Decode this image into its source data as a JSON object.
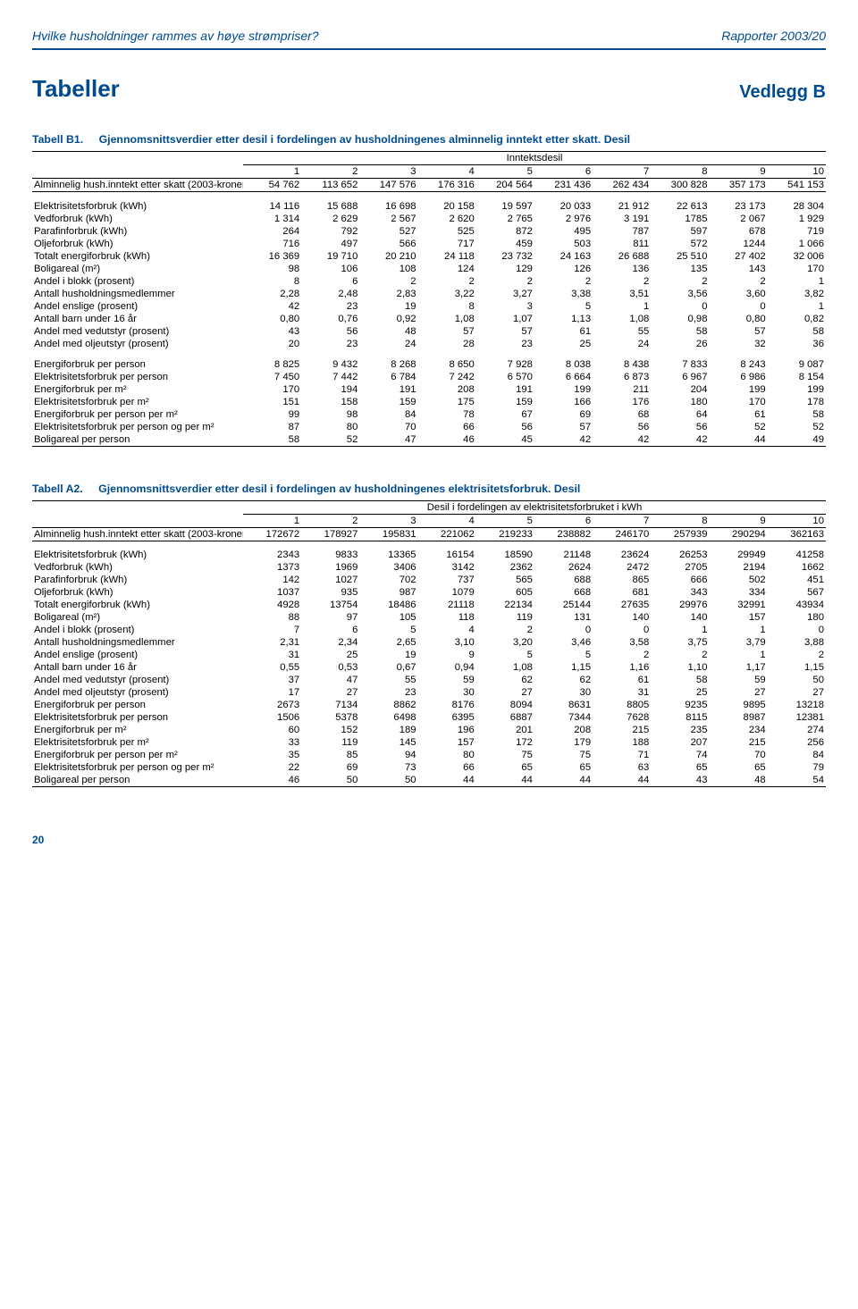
{
  "header": {
    "title": "Hvilke husholdninger rammes av høye strømpriser?",
    "report": "Rapporter 2003/20"
  },
  "appendix": {
    "tables_label": "Tabeller",
    "appendix_label": "Vedlegg B"
  },
  "tableB1": {
    "num": "Tabell B1.",
    "caption": "Gjennomsnittsverdier etter desil i fordelingen av husholdningenes alminnelig inntekt etter skatt. Desil",
    "span_header": "Inntektsdesil",
    "col_headers": [
      "1",
      "2",
      "3",
      "4",
      "5",
      "6",
      "7",
      "8",
      "9",
      "10"
    ],
    "income_row": {
      "label": "Alminnelig hush.inntekt etter skatt (2003-kroner)",
      "vals": [
        "54 762",
        "113 652",
        "147 576",
        "176 316",
        "204 564",
        "231 436",
        "262 434",
        "300 828",
        "357 173",
        "541 153"
      ]
    },
    "group1": [
      {
        "label": "Elektrisitetsforbruk (kWh)",
        "vals": [
          "14 116",
          "15 688",
          "16 698",
          "20 158",
          "19 597",
          "20 033",
          "21 912",
          "22 613",
          "23 173",
          "28 304"
        ]
      },
      {
        "label": "Vedforbruk (kWh)",
        "vals": [
          "1 314",
          "2 629",
          "2 567",
          "2 620",
          "2 765",
          "2 976",
          "3 191",
          "1785",
          "2 067",
          "1 929"
        ]
      },
      {
        "label": "Parafinforbruk (kWh)",
        "vals": [
          "264",
          "792",
          "527",
          "525",
          "872",
          "495",
          "787",
          "597",
          "678",
          "719"
        ]
      },
      {
        "label": "Oljeforbruk (kWh)",
        "vals": [
          "716",
          "497",
          "566",
          "717",
          "459",
          "503",
          "811",
          "572",
          "1244",
          "1 066"
        ]
      },
      {
        "label": "Totalt energiforbruk (kWh)",
        "vals": [
          "16 369",
          "19 710",
          "20 210",
          "24 118",
          "23 732",
          "24 163",
          "26 688",
          "25 510",
          "27 402",
          "32 006"
        ]
      },
      {
        "label": "Boligareal (m²)",
        "vals": [
          "98",
          "106",
          "108",
          "124",
          "129",
          "126",
          "136",
          "135",
          "143",
          "170"
        ]
      },
      {
        "label": "Andel i blokk (prosent)",
        "vals": [
          "8",
          "6",
          "2",
          "2",
          "2",
          "2",
          "2",
          "2",
          "2",
          "1"
        ]
      },
      {
        "label": "Antall husholdningsmedlemmer",
        "vals": [
          "2,28",
          "2,48",
          "2,83",
          "3,22",
          "3,27",
          "3,38",
          "3,51",
          "3,56",
          "3,60",
          "3,82"
        ]
      },
      {
        "label": "Andel enslige (prosent)",
        "vals": [
          "42",
          "23",
          "19",
          "8",
          "3",
          "5",
          "1",
          "0",
          "0",
          "1"
        ]
      },
      {
        "label": "Antall barn under 16 år",
        "vals": [
          "0,80",
          "0,76",
          "0,92",
          "1,08",
          "1,07",
          "1,13",
          "1,08",
          "0,98",
          "0,80",
          "0,82"
        ]
      },
      {
        "label": "Andel med vedutstyr (prosent)",
        "vals": [
          "43",
          "56",
          "48",
          "57",
          "57",
          "61",
          "55",
          "58",
          "57",
          "58"
        ]
      },
      {
        "label": "Andel med oljeutstyr (prosent)",
        "vals": [
          "20",
          "23",
          "24",
          "28",
          "23",
          "25",
          "24",
          "26",
          "32",
          "36"
        ]
      }
    ],
    "group2": [
      {
        "label": "Energiforbruk per person",
        "vals": [
          "8 825",
          "9 432",
          "8 268",
          "8 650",
          "7 928",
          "8 038",
          "8 438",
          "7 833",
          "8 243",
          "9 087"
        ]
      },
      {
        "label": "Elektrisitetsforbruk per person",
        "vals": [
          "7 450",
          "7 442",
          "6 784",
          "7 242",
          "6 570",
          "6 664",
          "6 873",
          "6 967",
          "6 986",
          "8 154"
        ]
      },
      {
        "label": "Energiforbruk per m²",
        "vals": [
          "170",
          "194",
          "191",
          "208",
          "191",
          "199",
          "211",
          "204",
          "199",
          "199"
        ]
      },
      {
        "label": "Elektrisitetsforbruk per m²",
        "vals": [
          "151",
          "158",
          "159",
          "175",
          "159",
          "166",
          "176",
          "180",
          "170",
          "178"
        ]
      },
      {
        "label": "Energiforbruk per person per m²",
        "vals": [
          "99",
          "98",
          "84",
          "78",
          "67",
          "69",
          "68",
          "64",
          "61",
          "58"
        ]
      },
      {
        "label": "Elektrisitetsforbruk per person og per m²",
        "vals": [
          "87",
          "80",
          "70",
          "66",
          "56",
          "57",
          "56",
          "56",
          "52",
          "52"
        ]
      },
      {
        "label": "Boligareal per person",
        "vals": [
          "58",
          "52",
          "47",
          "46",
          "45",
          "42",
          "42",
          "42",
          "44",
          "49"
        ]
      }
    ]
  },
  "tableA2": {
    "num": "Tabell A2.",
    "caption": "Gjennomsnittsverdier etter desil i fordelingen av husholdningenes elektrisitetsforbruk. Desil",
    "span_header": "Desil i fordelingen av elektrisitetsforbruket i kWh",
    "col_headers": [
      "1",
      "2",
      "3",
      "4",
      "5",
      "6",
      "7",
      "8",
      "9",
      "10"
    ],
    "income_row": {
      "label": "Alminnelig hush.inntekt etter skatt (2003-kroner)",
      "vals": [
        "172672",
        "178927",
        "195831",
        "221062",
        "219233",
        "238882",
        "246170",
        "257939",
        "290294",
        "362163"
      ]
    },
    "group1": [
      {
        "label": "Elektrisitetsforbruk (kWh)",
        "vals": [
          "2343",
          "9833",
          "13365",
          "16154",
          "18590",
          "21148",
          "23624",
          "26253",
          "29949",
          "41258"
        ]
      },
      {
        "label": "Vedforbruk (kWh)",
        "vals": [
          "1373",
          "1969",
          "3406",
          "3142",
          "2362",
          "2624",
          "2472",
          "2705",
          "2194",
          "1662"
        ]
      },
      {
        "label": "Parafinforbruk (kWh)",
        "vals": [
          "142",
          "1027",
          "702",
          "737",
          "565",
          "688",
          "865",
          "666",
          "502",
          "451"
        ]
      },
      {
        "label": "Oljeforbruk (kWh)",
        "vals": [
          "1037",
          "935",
          "987",
          "1079",
          "605",
          "668",
          "681",
          "343",
          "334",
          "567"
        ]
      },
      {
        "label": "Totalt energiforbruk (kWh)",
        "vals": [
          "4928",
          "13754",
          "18486",
          "21118",
          "22134",
          "25144",
          "27635",
          "29976",
          "32991",
          "43934"
        ]
      },
      {
        "label": "Boligareal (m²)",
        "vals": [
          "88",
          "97",
          "105",
          "118",
          "119",
          "131",
          "140",
          "140",
          "157",
          "180"
        ]
      },
      {
        "label": "Andel i blokk (prosent)",
        "vals": [
          "7",
          "6",
          "5",
          "4",
          "2",
          "0",
          "0",
          "1",
          "1",
          "0"
        ]
      },
      {
        "label": "Antall husholdningsmedlemmer",
        "vals": [
          "2,31",
          "2,34",
          "2,65",
          "3,10",
          "3,20",
          "3,46",
          "3,58",
          "3,75",
          "3,79",
          "3,88"
        ]
      },
      {
        "label": "Andel enslige (prosent)",
        "vals": [
          "31",
          "25",
          "19",
          "9",
          "5",
          "5",
          "2",
          "2",
          "1",
          "2"
        ]
      },
      {
        "label": "Antall barn under 16 år",
        "vals": [
          "0,55",
          "0,53",
          "0,67",
          "0,94",
          "1,08",
          "1,15",
          "1,16",
          "1,10",
          "1,17",
          "1,15"
        ]
      },
      {
        "label": "Andel med vedutstyr (prosent)",
        "vals": [
          "37",
          "47",
          "55",
          "59",
          "62",
          "62",
          "61",
          "58",
          "59",
          "50"
        ]
      },
      {
        "label": "Andel med oljeutstyr (prosent)",
        "vals": [
          "17",
          "27",
          "23",
          "30",
          "27",
          "30",
          "31",
          "25",
          "27",
          "27"
        ]
      },
      {
        "label": "Energiforbruk per person",
        "vals": [
          "2673",
          "7134",
          "8862",
          "8176",
          "8094",
          "8631",
          "8805",
          "9235",
          "9895",
          "13218"
        ]
      },
      {
        "label": "Elektrisitetsforbruk per person",
        "vals": [
          "1506",
          "5378",
          "6498",
          "6395",
          "6887",
          "7344",
          "7628",
          "8115",
          "8987",
          "12381"
        ]
      },
      {
        "label": "Energiforbruk per m²",
        "vals": [
          "60",
          "152",
          "189",
          "196",
          "201",
          "208",
          "215",
          "235",
          "234",
          "274"
        ]
      },
      {
        "label": "Elektrisitetsforbruk per m²",
        "vals": [
          "33",
          "119",
          "145",
          "157",
          "172",
          "179",
          "188",
          "207",
          "215",
          "256"
        ]
      },
      {
        "label": "Energiforbruk per person per m²",
        "vals": [
          "35",
          "85",
          "94",
          "80",
          "75",
          "75",
          "71",
          "74",
          "70",
          "84"
        ]
      },
      {
        "label": "Elektrisitetsforbruk per person og per m²",
        "vals": [
          "22",
          "69",
          "73",
          "66",
          "65",
          "65",
          "63",
          "65",
          "65",
          "79"
        ]
      },
      {
        "label": "Boligareal per person",
        "vals": [
          "46",
          "50",
          "50",
          "44",
          "44",
          "44",
          "44",
          "43",
          "48",
          "54"
        ]
      }
    ]
  },
  "page_number": "20"
}
